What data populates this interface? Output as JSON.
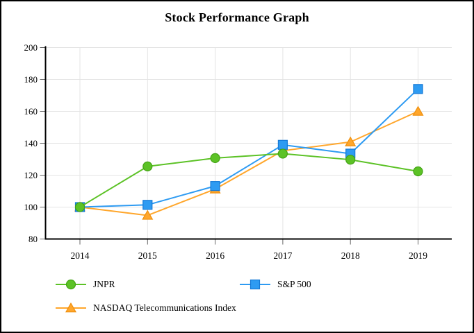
{
  "title": "Stock Performance Graph",
  "chart_data": {
    "type": "line",
    "categories": [
      "2014",
      "2015",
      "2016",
      "2017",
      "2018",
      "2019"
    ],
    "series": [
      {
        "name": "JNPR",
        "marker": "circle",
        "color": "#5CC226",
        "border": "#43A315",
        "values": [
          100,
          125.5,
          130.7,
          133.5,
          129.7,
          122.4
        ]
      },
      {
        "name": "S&P 500",
        "marker": "square",
        "color": "#2E9BF2",
        "border": "#1579D6",
        "values": [
          100,
          101.4,
          113.2,
          139,
          133.5,
          174
        ]
      },
      {
        "name": "NASDAQ Telecommunications Index",
        "marker": "triangle",
        "color": "#FFA62B",
        "border": "#EF8F0C",
        "values": [
          100,
          94.8,
          111.3,
          135.3,
          140.8,
          160
        ]
      }
    ],
    "ylim": [
      80,
      200
    ],
    "yticks": [
      80,
      100,
      120,
      140,
      160,
      180,
      200
    ],
    "grid": true,
    "legend_position": "bottom",
    "title": "Stock Performance Graph",
    "xlabel": "",
    "ylabel": ""
  },
  "colors": {
    "gridline": "#E4E4E4",
    "axis": "#000000",
    "tick": "#666666",
    "text": "#000000",
    "background": "#FFFFFF"
  }
}
